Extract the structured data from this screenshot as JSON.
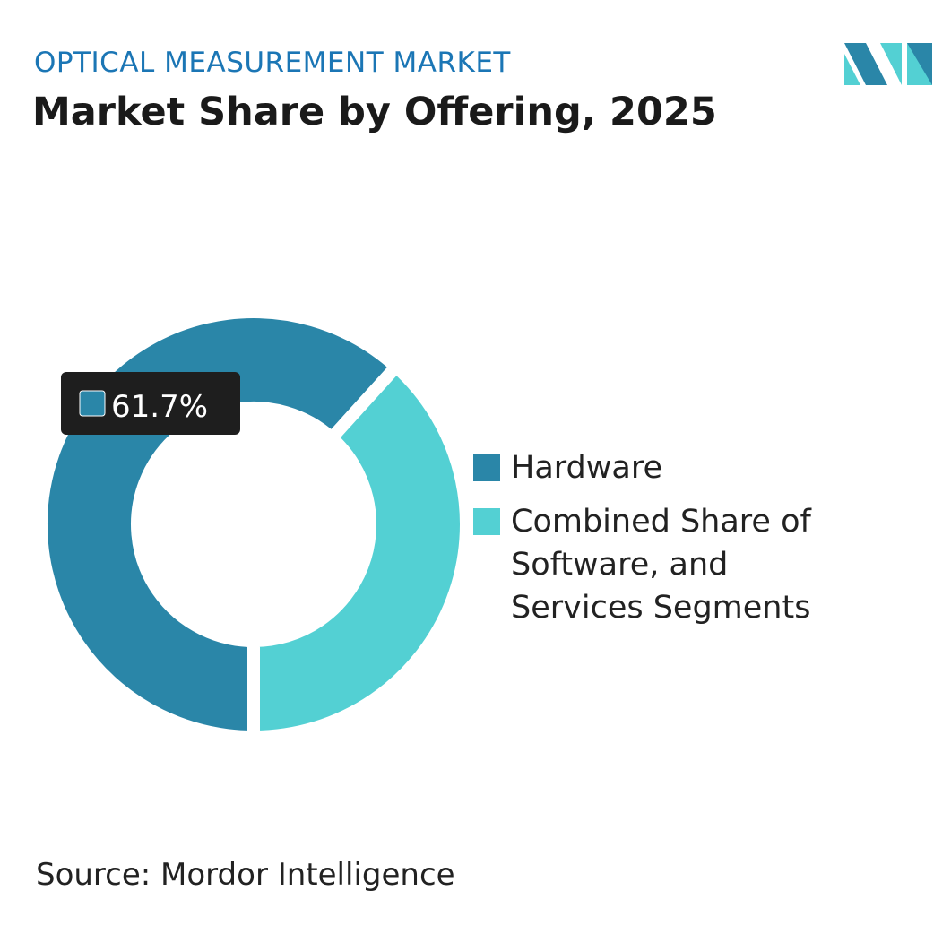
{
  "chart_data": {
    "type": "donut",
    "subtitle": "OPTICAL MEASUREMENT MARKET",
    "title": "Market Share by Offering, 2025",
    "categories": [
      "Hardware",
      "Combined Share of Software, and Services Segments"
    ],
    "values": [
      61.7,
      38.3
    ],
    "value_labels": [
      "61.7%",
      null
    ],
    "colors": [
      "#2a86a8",
      "#53d0d3"
    ],
    "legend": "right",
    "source": "Source: Mordor Intelligence"
  }
}
